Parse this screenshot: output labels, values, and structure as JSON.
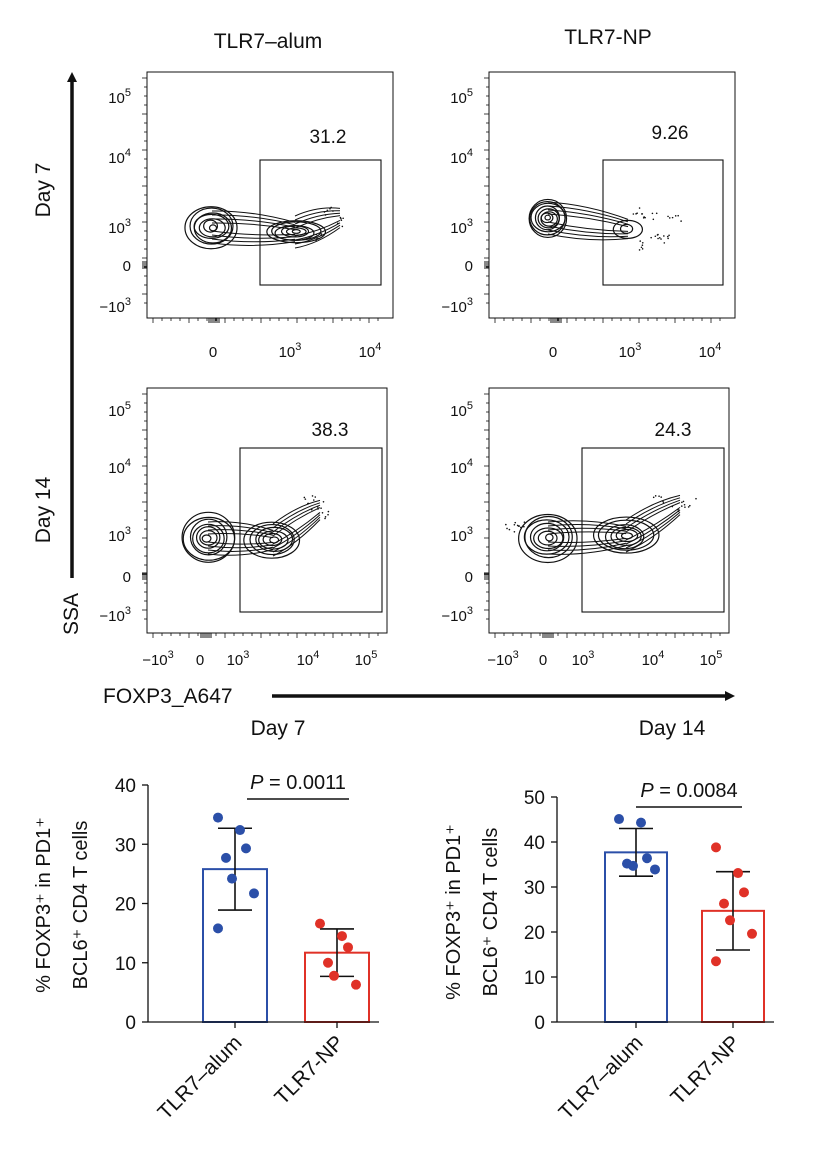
{
  "columns": [
    "TLR7–alum",
    "TLR7-NP"
  ],
  "rows": [
    "Day 7",
    "Day 14"
  ],
  "y_axis": "SSA",
  "x_axis": "FOXP3_A647",
  "colors": {
    "alum": "#2b4fa8",
    "np": "#e03127",
    "ink": "#111111"
  },
  "chart_data": [
    {
      "type": "contour",
      "row": "Day 7",
      "column": "TLR7–alum",
      "gate_percent": "31.2",
      "yticks": [
        "10^5",
        "10^4",
        "10^3",
        "0",
        "−10^3"
      ],
      "xticks": [
        "0",
        "10^3",
        "10^4"
      ]
    },
    {
      "type": "contour",
      "row": "Day 7",
      "column": "TLR7-NP",
      "gate_percent": "9.26",
      "yticks": [
        "10^5",
        "10^4",
        "10^3",
        "0",
        "−10^3"
      ],
      "xticks": [
        "0",
        "10^3",
        "10^4"
      ]
    },
    {
      "type": "contour",
      "row": "Day 14",
      "column": "TLR7–alum",
      "gate_percent": "38.3",
      "yticks": [
        "10^5",
        "10^4",
        "10^3",
        "0",
        "−10^3"
      ],
      "xticks": [
        "−10^3",
        "0",
        "10^3",
        "10^4",
        "10^5"
      ]
    },
    {
      "type": "contour",
      "row": "Day 14",
      "column": "TLR7-NP",
      "gate_percent": "24.3",
      "yticks": [
        "10^5",
        "10^4",
        "10^3",
        "0",
        "−10^3"
      ],
      "xticks": [
        "−10^3",
        "0",
        "10^3",
        "10^4",
        "10^5"
      ]
    },
    {
      "type": "bar",
      "title": "Day 7",
      "ylabel": "% FOXP3⁺ in PD1⁺ BCL6⁺ CD4 T cells",
      "ylabel_lines": [
        "% FOXP3⁺ in PD1⁺",
        "BCL6⁺ CD4 T cells"
      ],
      "ylim": [
        0,
        40
      ],
      "yticks": [
        0,
        10,
        20,
        30,
        40
      ],
      "categories": [
        "TLR7–alum",
        "TLR7-NP"
      ],
      "values": [
        25.8,
        11.7
      ],
      "sd": [
        6.9,
        4.0
      ],
      "points": [
        [
          34.5,
          32.4,
          29.3,
          27.7,
          24.2,
          21.7,
          15.8
        ],
        [
          16.6,
          14.5,
          12.6,
          10.0,
          7.8,
          6.3
        ]
      ],
      "p_label": "P = 0.0011"
    },
    {
      "type": "bar",
      "title": "Day 14",
      "ylabel": "% FOXP3⁺ in PD1⁺ BCL6⁺ CD4 T cells",
      "ylabel_lines": [
        "% FOXP3⁺ in PD1⁺",
        "BCL6⁺ CD4 T cells"
      ],
      "ylim": [
        0,
        50
      ],
      "yticks": [
        0,
        10,
        20,
        30,
        40,
        50
      ],
      "categories": [
        "TLR7–alum",
        "TLR7-NP"
      ],
      "values": [
        37.7,
        24.7
      ],
      "sd": [
        5.3,
        8.7
      ],
      "points": [
        [
          45.1,
          44.3,
          36.4,
          35.2,
          34.7,
          33.9
        ],
        [
          38.8,
          33.1,
          28.8,
          26.3,
          22.6,
          19.6,
          13.5
        ]
      ],
      "p_label": "P = 0.0084"
    }
  ]
}
